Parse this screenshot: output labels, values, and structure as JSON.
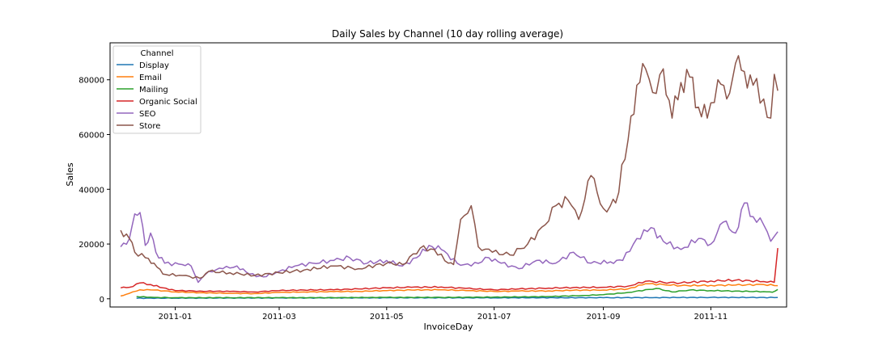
{
  "chart_data": {
    "type": "line",
    "title": "Daily Sales by Channel (10 day rolling average)",
    "xlabel": "InvoiceDay",
    "ylabel": "Sales",
    "legend_title": "Channel",
    "legend_position": "top-left",
    "grid": false,
    "xlim": [
      "2010-11-25",
      "2011-12-14"
    ],
    "ylim": [
      -3000,
      93500
    ],
    "x_ticks": [
      "2011-01-01",
      "2011-03-01",
      "2011-05-01",
      "2011-07-01",
      "2011-09-01",
      "2011-11-01"
    ],
    "x_tick_labels": [
      "2011-01",
      "2011-03",
      "2011-05",
      "2011-07",
      "2011-09",
      "2011-11"
    ],
    "y_ticks": [
      0,
      20000,
      40000,
      60000,
      80000
    ],
    "y_tick_labels": [
      "0",
      "20000",
      "40000",
      "60000",
      "80000"
    ],
    "series": [
      {
        "name": "Display",
        "color": "#1f77b4",
        "x": [
          "2010-12-10",
          "2011-01-01",
          "2011-03-01",
          "2011-05-01",
          "2011-07-01",
          "2011-09-01",
          "2011-10-01",
          "2011-11-01",
          "2011-12-09"
        ],
        "y": [
          200,
          250,
          300,
          350,
          350,
          400,
          450,
          500,
          450
        ]
      },
      {
        "name": "Email",
        "color": "#ff7f0e",
        "x": [
          "2010-12-01",
          "2010-12-06",
          "2010-12-12",
          "2010-12-20",
          "2011-01-01",
          "2011-01-15",
          "2011-02-01",
          "2011-02-15",
          "2011-03-01",
          "2011-03-15",
          "2011-04-01",
          "2011-04-15",
          "2011-05-01",
          "2011-05-15",
          "2011-06-01",
          "2011-06-15",
          "2011-07-01",
          "2011-07-15",
          "2011-08-01",
          "2011-08-15",
          "2011-09-01",
          "2011-09-15",
          "2011-09-25",
          "2011-10-05",
          "2011-10-15",
          "2011-11-01",
          "2011-11-15",
          "2011-12-01",
          "2011-12-09"
        ],
        "y": [
          1000,
          2000,
          3300,
          3200,
          2500,
          2200,
          2000,
          1900,
          2300,
          2500,
          2600,
          2700,
          3000,
          3200,
          3300,
          3000,
          2700,
          2800,
          2900,
          3100,
          3200,
          3600,
          5500,
          5200,
          4800,
          4900,
          5000,
          5200,
          4800
        ]
      },
      {
        "name": "Mailing",
        "color": "#2ca02c",
        "x": [
          "2010-12-10",
          "2010-12-20",
          "2011-01-01",
          "2011-02-01",
          "2011-03-01",
          "2011-04-01",
          "2011-05-01",
          "2011-06-01",
          "2011-07-01",
          "2011-08-01",
          "2011-08-20",
          "2011-09-01",
          "2011-09-15",
          "2011-10-01",
          "2011-10-10",
          "2011-10-20",
          "2011-11-01",
          "2011-11-15",
          "2011-12-01",
          "2011-12-06",
          "2011-12-09"
        ],
        "y": [
          800,
          500,
          400,
          400,
          400,
          400,
          500,
          500,
          600,
          800,
          1200,
          1500,
          2300,
          3800,
          2500,
          3200,
          3000,
          2800,
          2600,
          2400,
          3400
        ]
      },
      {
        "name": "Organic Social",
        "color": "#d62728",
        "x": [
          "2010-12-01",
          "2010-12-06",
          "2010-12-12",
          "2010-12-18",
          "2010-12-25",
          "2011-01-01",
          "2011-01-15",
          "2011-02-01",
          "2011-02-15",
          "2011-03-01",
          "2011-03-15",
          "2011-04-01",
          "2011-04-15",
          "2011-05-01",
          "2011-05-15",
          "2011-06-01",
          "2011-06-15",
          "2011-07-01",
          "2011-07-15",
          "2011-08-01",
          "2011-08-15",
          "2011-09-01",
          "2011-09-15",
          "2011-09-25",
          "2011-10-05",
          "2011-10-15",
          "2011-11-01",
          "2011-11-15",
          "2011-12-01",
          "2011-12-07",
          "2011-12-09"
        ],
        "y": [
          4000,
          4200,
          5800,
          5200,
          4000,
          3000,
          2800,
          2700,
          2500,
          3000,
          3200,
          3300,
          3600,
          4000,
          4200,
          4300,
          3800,
          3300,
          3600,
          3900,
          4100,
          4200,
          4600,
          6400,
          6000,
          5800,
          6500,
          6800,
          6300,
          6000,
          18500
        ]
      },
      {
        "name": "SEO",
        "color": "#9467bd",
        "x": [
          "2010-12-01",
          "2010-12-06",
          "2010-12-09",
          "2010-12-12",
          "2010-12-15",
          "2010-12-18",
          "2010-12-21",
          "2010-12-26",
          "2011-01-05",
          "2011-01-10",
          "2011-01-14",
          "2011-01-20",
          "2011-01-28",
          "2011-02-05",
          "2011-02-12",
          "2011-02-20",
          "2011-03-01",
          "2011-03-10",
          "2011-03-20",
          "2011-04-01",
          "2011-04-10",
          "2011-04-20",
          "2011-05-01",
          "2011-05-10",
          "2011-05-18",
          "2011-05-25",
          "2011-06-01",
          "2011-06-10",
          "2011-06-18",
          "2011-06-28",
          "2011-07-05",
          "2011-07-15",
          "2011-07-25",
          "2011-08-05",
          "2011-08-15",
          "2011-08-25",
          "2011-09-05",
          "2011-09-12",
          "2011-09-20",
          "2011-09-28",
          "2011-10-05",
          "2011-10-15",
          "2011-10-25",
          "2011-11-01",
          "2011-11-08",
          "2011-11-15",
          "2011-11-20",
          "2011-11-25",
          "2011-12-01",
          "2011-12-05",
          "2011-12-09"
        ],
        "y": [
          19000,
          22000,
          31000,
          31500,
          19500,
          24000,
          17000,
          13000,
          12500,
          12000,
          6000,
          10000,
          11000,
          12000,
          9000,
          8000,
          10000,
          12000,
          13000,
          14000,
          15000,
          13000,
          14000,
          12000,
          15000,
          19500,
          18000,
          13000,
          12000,
          15000,
          13000,
          11000,
          14000,
          13000,
          17000,
          13000,
          13500,
          14000,
          22000,
          26000,
          21000,
          18000,
          22000,
          20000,
          28000,
          24000,
          35000,
          30000,
          27000,
          21000,
          24500
        ]
      },
      {
        "name": "Store",
        "color": "#8c564b",
        "x": [
          "2010-12-01",
          "2010-12-06",
          "2010-12-09",
          "2010-12-15",
          "2010-12-20",
          "2010-12-25",
          "2011-01-05",
          "2011-01-15",
          "2011-01-20",
          "2011-02-01",
          "2011-02-15",
          "2011-03-01",
          "2011-03-15",
          "2011-04-01",
          "2011-04-15",
          "2011-05-01",
          "2011-05-10",
          "2011-05-20",
          "2011-05-28",
          "2011-06-05",
          "2011-06-08",
          "2011-06-12",
          "2011-06-18",
          "2011-06-22",
          "2011-06-30",
          "2011-07-10",
          "2011-07-20",
          "2011-07-30",
          "2011-08-05",
          "2011-08-12",
          "2011-08-18",
          "2011-08-25",
          "2011-09-01",
          "2011-09-05",
          "2011-09-08",
          "2011-09-15",
          "2011-09-20",
          "2011-09-25",
          "2011-10-01",
          "2011-10-05",
          "2011-10-10",
          "2011-10-15",
          "2011-10-20",
          "2011-10-25",
          "2011-10-30",
          "2011-11-05",
          "2011-11-10",
          "2011-11-15",
          "2011-11-20",
          "2011-11-25",
          "2011-12-01",
          "2011-12-05",
          "2011-12-07",
          "2011-12-09"
        ],
        "y": [
          25000,
          22000,
          17000,
          15000,
          13000,
          9000,
          8500,
          7500,
          10000,
          9500,
          8500,
          9500,
          10500,
          12000,
          11000,
          13000,
          12500,
          18500,
          18000,
          13000,
          12500,
          29000,
          34000,
          19000,
          17000,
          16000,
          20000,
          27000,
          34000,
          36000,
          29000,
          45000,
          33000,
          34000,
          35000,
          58000,
          78000,
          84000,
          75000,
          84000,
          66000,
          79000,
          81000,
          70000,
          66000,
          80000,
          73000,
          86000,
          83000,
          78000,
          73000,
          66000,
          82000,
          76000
        ]
      }
    ]
  }
}
